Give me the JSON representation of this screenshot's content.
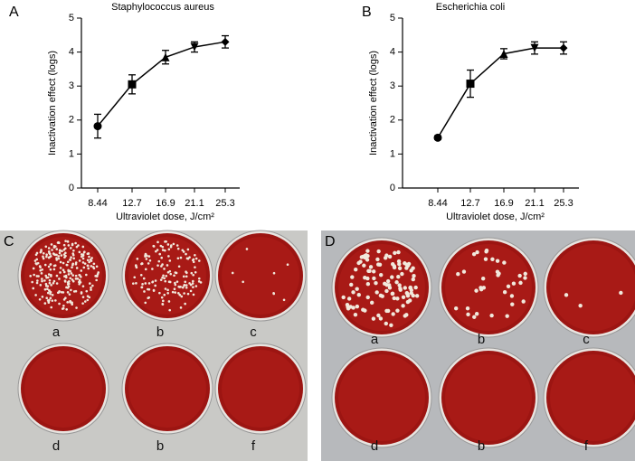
{
  "chart_data": [
    {
      "type": "line",
      "panel": "A",
      "title": "Staphylococcus aureus",
      "categories": [
        "8.44",
        "12.7",
        "16.9",
        "21.1",
        "25.3"
      ],
      "values": [
        1.82,
        3.05,
        3.85,
        4.15,
        4.3
      ],
      "errors": [
        0.35,
        0.28,
        0.2,
        0.15,
        0.18
      ],
      "color": "#000000",
      "xlabel": "Ultraviolet dose, J/cm²",
      "ylabel": "Inactivation effect (logs)",
      "ylim": [
        0,
        5
      ],
      "yticks": [
        0,
        1,
        2,
        3,
        4,
        5
      ]
    },
    {
      "type": "line",
      "panel": "B",
      "title": "Escherichia coli",
      "categories": [
        "8.44",
        "12.7",
        "16.9",
        "21.1",
        "25.3"
      ],
      "values": [
        1.48,
        3.07,
        3.95,
        4.12,
        4.12
      ],
      "errors": [
        0.05,
        0.4,
        0.15,
        0.18,
        0.18
      ],
      "color": "#000000",
      "xlabel": "Ultraviolet dose, J/cm²",
      "ylabel": "Inactivation effect (logs)",
      "ylim": [
        0,
        5
      ],
      "yticks": [
        0,
        1,
        2,
        3,
        4,
        5
      ]
    }
  ],
  "photos": [
    {
      "panel": "C",
      "plates": [
        "a",
        "b",
        "c",
        "d",
        "b",
        "f"
      ]
    },
    {
      "panel": "D",
      "plates": [
        "a",
        "b",
        "c",
        "d",
        "b",
        "f"
      ]
    }
  ]
}
